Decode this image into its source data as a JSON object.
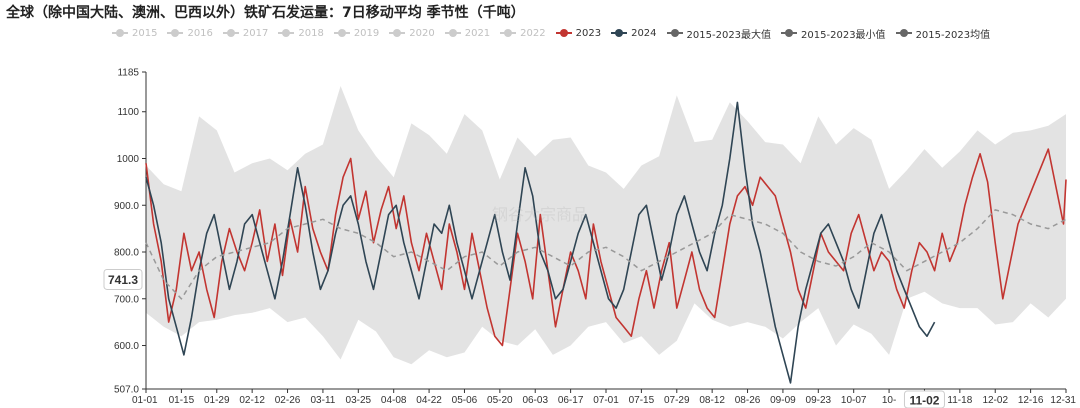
{
  "title": "全球（除中国大陆、澳洲、巴西以外）铁矿石发运量：7日移动平均 季节性（千吨）",
  "watermark": "钢谷大宗商品",
  "legend": [
    {
      "label": "2015",
      "color": "#cccccc"
    },
    {
      "label": "2016",
      "color": "#cccccc"
    },
    {
      "label": "2017",
      "color": "#cccccc"
    },
    {
      "label": "2018",
      "color": "#cccccc"
    },
    {
      "label": "2019",
      "color": "#cccccc"
    },
    {
      "label": "2020",
      "color": "#cccccc"
    },
    {
      "label": "2021",
      "color": "#cccccc"
    },
    {
      "label": "2022",
      "color": "#cccccc"
    },
    {
      "label": "2023",
      "color": "#c23531"
    },
    {
      "label": "2024",
      "color": "#2f4554"
    },
    {
      "label": "2015-2023最大值",
      "color": "#666666"
    },
    {
      "label": "2015-2023最小值",
      "color": "#666666"
    },
    {
      "label": "2015-2023均值",
      "color": "#666666"
    }
  ],
  "chart_data": {
    "type": "line",
    "title": "全球（除中国大陆、澳洲、巴西以外）铁矿石发运量：7日移动平均 季节性（千吨）",
    "ylim": [
      507,
      1185
    ],
    "y_ticks": [
      "507.0",
      "600.0",
      "700.0",
      "800.0",
      "900.0",
      "1000",
      "1100",
      "1185"
    ],
    "x_ticks": [
      "01-01",
      "01-15",
      "01-29",
      "02-12",
      "02-26",
      "03-11",
      "03-25",
      "04-08",
      "04-22",
      "05-06",
      "05-20",
      "06-03",
      "06-17",
      "07-01",
      "07-15",
      "07-29",
      "08-12",
      "08-26",
      "09-09",
      "09-23",
      "10-07",
      "10-",
      "11-02",
      "11-18",
      "12-02",
      "12-16",
      "12-31"
    ],
    "x_range_days": [
      1,
      365
    ],
    "highlight": {
      "x_label": "11-02",
      "y_label": "741.3"
    },
    "grid": false,
    "legend_position": "top",
    "band": {
      "name": "2015-2023最大值 / 2015-2023最小值",
      "x": [
        1,
        8,
        15,
        22,
        29,
        36,
        43,
        50,
        57,
        64,
        71,
        78,
        85,
        92,
        99,
        106,
        113,
        120,
        127,
        134,
        141,
        148,
        155,
        162,
        169,
        176,
        183,
        190,
        197,
        204,
        211,
        218,
        225,
        232,
        239,
        246,
        253,
        260,
        267,
        274,
        281,
        288,
        295,
        302,
        309,
        316,
        323,
        330,
        337,
        344,
        351,
        358,
        365
      ],
      "max": [
        985,
        945,
        930,
        1090,
        1060,
        970,
        990,
        1000,
        975,
        1010,
        1030,
        1155,
        1060,
        1005,
        960,
        1075,
        1050,
        1010,
        1095,
        1060,
        955,
        1045,
        1005,
        1040,
        1045,
        985,
        970,
        935,
        985,
        1005,
        1135,
        1035,
        1040,
        1120,
        1080,
        1035,
        1030,
        990,
        1090,
        1030,
        1065,
        1040,
        935,
        975,
        1020,
        980,
        1015,
        1060,
        1030,
        1055,
        1060,
        1070,
        1095
      ],
      "min": [
        670,
        640,
        620,
        650,
        655,
        665,
        670,
        680,
        650,
        660,
        620,
        570,
        655,
        630,
        575,
        560,
        590,
        575,
        585,
        640,
        610,
        600,
        635,
        580,
        600,
        640,
        650,
        605,
        620,
        580,
        610,
        690,
        655,
        640,
        650,
        640,
        615,
        650,
        680,
        600,
        645,
        625,
        580,
        700,
        715,
        690,
        680,
        680,
        645,
        650,
        690,
        660,
        700
      ]
    },
    "series": [
      {
        "name": "2023",
        "color": "#c23531",
        "x": [
          1,
          4,
          7,
          10,
          13,
          16,
          19,
          22,
          25,
          28,
          31,
          34,
          37,
          40,
          43,
          46,
          49,
          52,
          55,
          58,
          61,
          64,
          67,
          70,
          73,
          76,
          79,
          82,
          85,
          88,
          91,
          94,
          97,
          100,
          103,
          106,
          109,
          112,
          115,
          118,
          121,
          124,
          127,
          130,
          133,
          136,
          139,
          142,
          145,
          148,
          151,
          154,
          157,
          160,
          163,
          166,
          169,
          172,
          175,
          178,
          181,
          184,
          187,
          190,
          193,
          196,
          199,
          202,
          205,
          208,
          211,
          214,
          217,
          220,
          223,
          226,
          229,
          232,
          235,
          238,
          241,
          244,
          247,
          250,
          253,
          256,
          259,
          262,
          265,
          268,
          271,
          274,
          277,
          280,
          283,
          286,
          289,
          292,
          295,
          298,
          301,
          304,
          307,
          310,
          313,
          316,
          319,
          322,
          325,
          328,
          331,
          334,
          337,
          340,
          343,
          346,
          349,
          352,
          355,
          358,
          361,
          364,
          365
        ],
        "values": [
          990,
          860,
          780,
          650,
          720,
          840,
          760,
          800,
          720,
          660,
          780,
          850,
          800,
          760,
          820,
          890,
          780,
          860,
          750,
          870,
          800,
          940,
          850,
          800,
          760,
          880,
          960,
          1000,
          870,
          930,
          820,
          890,
          940,
          850,
          920,
          820,
          760,
          840,
          780,
          720,
          860,
          800,
          720,
          840,
          760,
          680,
          620,
          600,
          720,
          840,
          780,
          700,
          880,
          760,
          640,
          720,
          800,
          760,
          700,
          860,
          780,
          720,
          660,
          640,
          620,
          700,
          760,
          680,
          760,
          820,
          680,
          740,
          800,
          720,
          680,
          660,
          760,
          860,
          920,
          940,
          900,
          960,
          940,
          920,
          860,
          800,
          720,
          680,
          760,
          840,
          800,
          780,
          760,
          840,
          880,
          820,
          760,
          800,
          780,
          720,
          680,
          760,
          820,
          800,
          760,
          840,
          780,
          820,
          900,
          960,
          1010,
          950,
          820,
          700,
          780,
          860,
          900,
          940,
          980,
          1020,
          940,
          860,
          955
        ]
      },
      {
        "name": "2024",
        "color": "#2f4554",
        "x": [
          1,
          4,
          7,
          10,
          13,
          16,
          19,
          22,
          25,
          28,
          31,
          34,
          37,
          40,
          43,
          46,
          49,
          52,
          55,
          58,
          61,
          64,
          67,
          70,
          73,
          76,
          79,
          82,
          85,
          88,
          91,
          94,
          97,
          100,
          103,
          106,
          109,
          112,
          115,
          118,
          121,
          124,
          127,
          130,
          133,
          136,
          139,
          142,
          145,
          148,
          151,
          154,
          157,
          160,
          163,
          166,
          169,
          172,
          175,
          178,
          181,
          184,
          187,
          190,
          193,
          196,
          199,
          202,
          205,
          208,
          211,
          214,
          217,
          220,
          223,
          226,
          229,
          232,
          235,
          238,
          241,
          244,
          247,
          250,
          253,
          256,
          259,
          262,
          265,
          268,
          271,
          274,
          277,
          280,
          283,
          286,
          289,
          292,
          295,
          298,
          301,
          304,
          307,
          310,
          313
        ],
        "values": [
          960,
          900,
          820,
          700,
          640,
          580,
          660,
          760,
          840,
          880,
          800,
          720,
          780,
          860,
          880,
          820,
          760,
          700,
          780,
          880,
          980,
          900,
          800,
          720,
          760,
          840,
          900,
          920,
          860,
          780,
          720,
          800,
          880,
          900,
          820,
          760,
          700,
          780,
          860,
          840,
          900,
          820,
          760,
          700,
          760,
          820,
          880,
          800,
          740,
          860,
          980,
          920,
          800,
          760,
          700,
          720,
          780,
          840,
          880,
          820,
          760,
          700,
          680,
          720,
          800,
          880,
          900,
          820,
          740,
          800,
          880,
          920,
          860,
          800,
          760,
          840,
          900,
          1000,
          1120,
          980,
          860,
          800,
          720,
          640,
          580,
          520,
          640,
          720,
          780,
          840,
          860,
          820,
          780,
          720,
          680,
          760,
          840,
          880,
          820,
          760,
          720,
          680,
          640,
          620,
          650
        ]
      },
      {
        "name": "2015-2023均值",
        "color": "#999999",
        "x": [
          1,
          8,
          15,
          22,
          29,
          36,
          43,
          50,
          57,
          64,
          71,
          78,
          85,
          92,
          99,
          106,
          113,
          120,
          127,
          134,
          141,
          148,
          155,
          162,
          169,
          176,
          183,
          190,
          197,
          204,
          211,
          218,
          225,
          232,
          239,
          246,
          253,
          260,
          267,
          274,
          281,
          288,
          295,
          302,
          309,
          316,
          323,
          330,
          337,
          344,
          351,
          358,
          365
        ],
        "values": [
          820,
          740,
          700,
          760,
          790,
          800,
          810,
          820,
          850,
          860,
          870,
          850,
          840,
          820,
          790,
          800,
          780,
          760,
          790,
          800,
          770,
          800,
          810,
          790,
          770,
          800,
          810,
          790,
          760,
          780,
          800,
          820,
          840,
          880,
          870,
          860,
          840,
          800,
          780,
          770,
          790,
          820,
          800,
          760,
          780,
          800,
          820,
          850,
          890,
          880,
          860,
          850,
          870
        ]
      }
    ]
  }
}
